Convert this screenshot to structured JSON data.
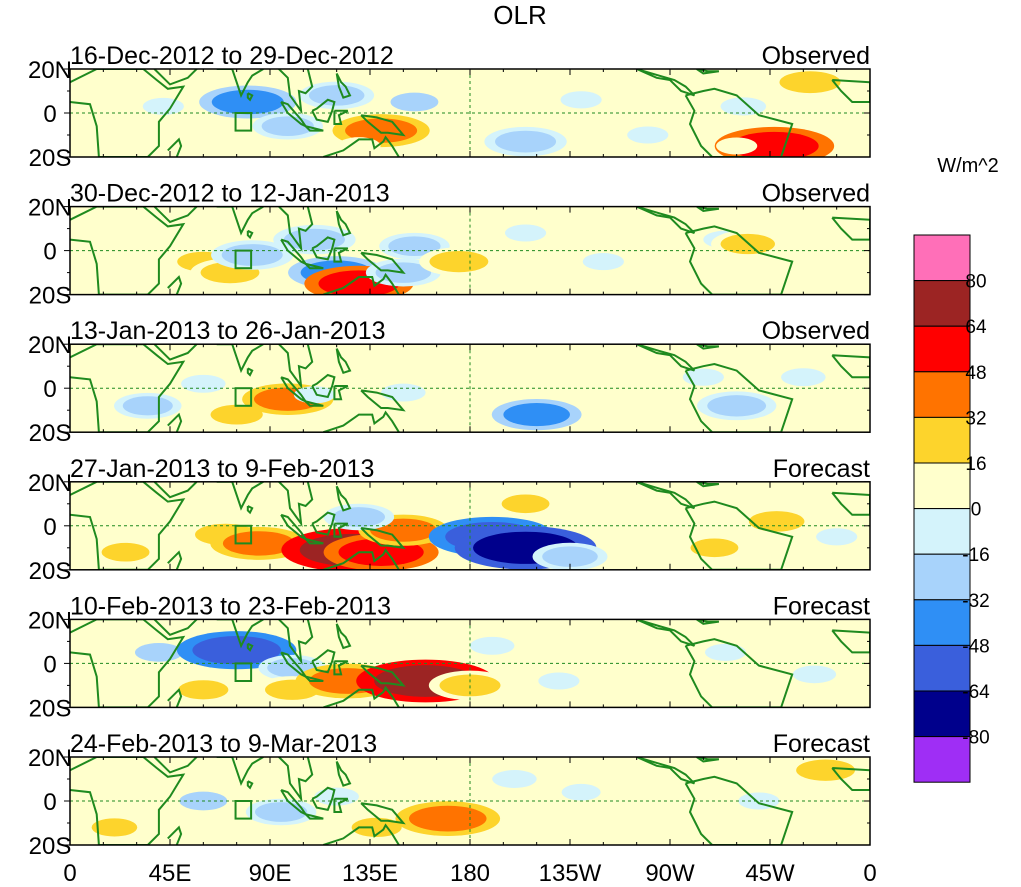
{
  "chart_data": {
    "type": "heatmap",
    "title": "OLR",
    "colorbar": {
      "unit_label": "W/m^2",
      "tick_labels": [
        "80",
        "64",
        "48",
        "32",
        "16",
        "0",
        "-16",
        "-32",
        "-48",
        "-64",
        "-80"
      ],
      "colors_top_to_bottom": [
        "#ff6fb8",
        "#9c2423",
        "#ff0000",
        "#ff7300",
        "#fdd42c",
        "#ffffcc",
        "#d4f3fb",
        "#a8d3fb",
        "#2f8ff5",
        "#3a5fdc",
        "#00008c",
        "#9f2ef5"
      ]
    },
    "x_tick_labels": [
      "0",
      "45E",
      "90E",
      "135E",
      "180",
      "135W",
      "90W",
      "45W",
      "0"
    ],
    "y_tick_labels": [
      "20N",
      "0",
      "20S"
    ],
    "lon_range": [
      0,
      360
    ],
    "lat_range": [
      -20,
      20
    ],
    "panels": [
      {
        "period": "16-Dec-2012 to 29-Dec-2012",
        "kind": "Observed",
        "anomalies": [
          {
            "lon": 42,
            "lat": 3,
            "value": -12
          },
          {
            "lon": 80,
            "lat": 5,
            "value": -40
          },
          {
            "lon": 98,
            "lat": -6,
            "value": -22
          },
          {
            "lon": 120,
            "lat": 8,
            "value": -25
          },
          {
            "lon": 140,
            "lat": -8,
            "value": 40
          },
          {
            "lon": 130,
            "lat": -15,
            "value": 14
          },
          {
            "lon": 155,
            "lat": 5,
            "value": -18
          },
          {
            "lon": 185,
            "lat": 2,
            "value": 10
          },
          {
            "lon": 205,
            "lat": -13,
            "value": -30
          },
          {
            "lon": 230,
            "lat": 6,
            "value": -12
          },
          {
            "lon": 260,
            "lat": -10,
            "value": -12
          },
          {
            "lon": 285,
            "lat": 10,
            "value": 15
          },
          {
            "lon": 317,
            "lat": -15,
            "value": 55
          },
          {
            "lon": 333,
            "lat": 14,
            "value": 30
          },
          {
            "lon": 303,
            "lat": 3,
            "value": -16
          },
          {
            "lon": 300,
            "lat": -15,
            "value": 12
          }
        ]
      },
      {
        "period": "30-Dec-2012 to 12-Jan-2013",
        "kind": "Observed",
        "anomalies": [
          {
            "lon": 60,
            "lat": -5,
            "value": 22
          },
          {
            "lon": 72,
            "lat": -10,
            "value": 28
          },
          {
            "lon": 82,
            "lat": -2,
            "value": -30
          },
          {
            "lon": 110,
            "lat": 5,
            "value": -30
          },
          {
            "lon": 120,
            "lat": -10,
            "value": -40
          },
          {
            "lon": 130,
            "lat": -15,
            "value": 48
          },
          {
            "lon": 150,
            "lat": -10,
            "value": -25
          },
          {
            "lon": 155,
            "lat": 2,
            "value": -22
          },
          {
            "lon": 175,
            "lat": -5,
            "value": 28
          },
          {
            "lon": 205,
            "lat": 8,
            "value": -12
          },
          {
            "lon": 240,
            "lat": -5,
            "value": -12
          },
          {
            "lon": 295,
            "lat": 5,
            "value": -15
          },
          {
            "lon": 305,
            "lat": 3,
            "value": 24
          },
          {
            "lon": 330,
            "lat": 12,
            "value": 14
          }
        ]
      },
      {
        "period": "13-Jan-2013 to 26-Jan-2013",
        "kind": "Observed",
        "anomalies": [
          {
            "lon": 35,
            "lat": -8,
            "value": -20
          },
          {
            "lon": 60,
            "lat": 2,
            "value": -15
          },
          {
            "lon": 75,
            "lat": -12,
            "value": 22
          },
          {
            "lon": 98,
            "lat": -5,
            "value": 36
          },
          {
            "lon": 110,
            "lat": -3,
            "value": -12
          },
          {
            "lon": 150,
            "lat": -2,
            "value": -15
          },
          {
            "lon": 210,
            "lat": -12,
            "value": -35
          },
          {
            "lon": 175,
            "lat": 10,
            "value": 8
          },
          {
            "lon": 300,
            "lat": -8,
            "value": -28
          },
          {
            "lon": 285,
            "lat": 5,
            "value": -12
          },
          {
            "lon": 330,
            "lat": 5,
            "value": -15
          }
        ]
      },
      {
        "period": "27-Jan-2013 to 9-Feb-2013",
        "kind": "Forecast",
        "anomalies": [
          {
            "lon": 25,
            "lat": -12,
            "value": 18
          },
          {
            "lon": 70,
            "lat": -4,
            "value": 30
          },
          {
            "lon": 85,
            "lat": -8,
            "value": 40
          },
          {
            "lon": 115,
            "lat": -10,
            "value": 28
          },
          {
            "lon": 127,
            "lat": -11,
            "value": 70
          },
          {
            "lon": 140,
            "lat": -12,
            "value": 52
          },
          {
            "lon": 150,
            "lat": -2,
            "value": 35
          },
          {
            "lon": 130,
            "lat": 4,
            "value": -22
          },
          {
            "lon": 190,
            "lat": -5,
            "value": -60
          },
          {
            "lon": 205,
            "lat": -10,
            "value": -70
          },
          {
            "lon": 225,
            "lat": -14,
            "value": -25
          },
          {
            "lon": 205,
            "lat": 10,
            "value": 18
          },
          {
            "lon": 245,
            "lat": 8,
            "value": 12
          },
          {
            "lon": 290,
            "lat": -10,
            "value": 18
          },
          {
            "lon": 318,
            "lat": 2,
            "value": 25
          },
          {
            "lon": 345,
            "lat": -5,
            "value": -12
          }
        ]
      },
      {
        "period": "10-Feb-2013 to 23-Feb-2013",
        "kind": "Forecast",
        "anomalies": [
          {
            "lon": 40,
            "lat": 5,
            "value": -18
          },
          {
            "lon": 75,
            "lat": 6,
            "value": -55
          },
          {
            "lon": 100,
            "lat": -2,
            "value": -20
          },
          {
            "lon": 60,
            "lat": -12,
            "value": 20
          },
          {
            "lon": 100,
            "lat": -12,
            "value": 24
          },
          {
            "lon": 125,
            "lat": -8,
            "value": 45
          },
          {
            "lon": 160,
            "lat": -8,
            "value": 68
          },
          {
            "lon": 180,
            "lat": -10,
            "value": 30
          },
          {
            "lon": 190,
            "lat": 8,
            "value": -15
          },
          {
            "lon": 220,
            "lat": -8,
            "value": -12
          },
          {
            "lon": 295,
            "lat": 5,
            "value": -12
          },
          {
            "lon": 335,
            "lat": -5,
            "value": -14
          }
        ]
      },
      {
        "period": "24-Feb-2013 to 9-Mar-2013",
        "kind": "Forecast",
        "anomalies": [
          {
            "lon": 20,
            "lat": -12,
            "value": 16
          },
          {
            "lon": 60,
            "lat": 0,
            "value": -18
          },
          {
            "lon": 95,
            "lat": -5,
            "value": -22
          },
          {
            "lon": 120,
            "lat": 2,
            "value": -15
          },
          {
            "lon": 138,
            "lat": -12,
            "value": 20
          },
          {
            "lon": 170,
            "lat": -8,
            "value": 45
          },
          {
            "lon": 200,
            "lat": 10,
            "value": -15
          },
          {
            "lon": 230,
            "lat": 4,
            "value": -10
          },
          {
            "lon": 310,
            "lat": 0,
            "value": -12
          },
          {
            "lon": 340,
            "lat": 14,
            "value": 28
          }
        ]
      }
    ]
  }
}
